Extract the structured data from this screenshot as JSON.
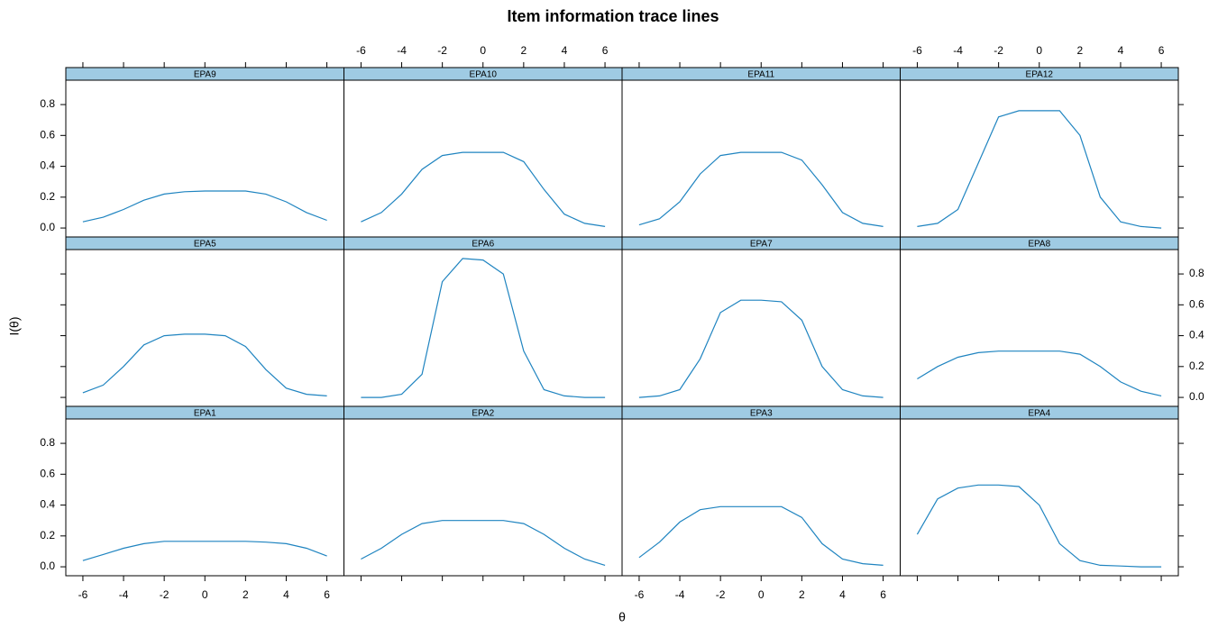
{
  "title": "Item information trace lines",
  "x_label": "θ",
  "y_label": "I(θ)",
  "xlim": [
    -6.84,
    6.84
  ],
  "ylim": [
    -0.058,
    0.958
  ],
  "xticks": [
    -6,
    -4,
    -2,
    0,
    2,
    4,
    6
  ],
  "yticks": [
    {
      "value": 0,
      "label": "0.0"
    },
    {
      "value": 0.2,
      "label": "0.2"
    },
    {
      "value": 0.4,
      "label": "0.4"
    },
    {
      "value": 0.6,
      "label": "0.6"
    },
    {
      "value": 0.8,
      "label": "0.8"
    }
  ],
  "x": [
    -6,
    -5,
    -4,
    -3,
    -2,
    -1,
    0,
    1,
    2,
    3,
    4,
    5,
    6
  ],
  "chart_data": [
    {
      "type": "line",
      "title": "EPA1",
      "color": "#1f84c0",
      "values": [
        0.04,
        0.08,
        0.12,
        0.15,
        0.165,
        0.165,
        0.165,
        0.165,
        0.165,
        0.16,
        0.15,
        0.12,
        0.07
      ]
    },
    {
      "type": "line",
      "title": "EPA2",
      "color": "#1f84c0",
      "values": [
        0.05,
        0.12,
        0.21,
        0.28,
        0.3,
        0.3,
        0.3,
        0.3,
        0.28,
        0.21,
        0.12,
        0.05,
        0.01
      ]
    },
    {
      "type": "line",
      "title": "EPA3",
      "color": "#1f84c0",
      "values": [
        0.06,
        0.16,
        0.29,
        0.37,
        0.39,
        0.39,
        0.39,
        0.39,
        0.32,
        0.15,
        0.05,
        0.02,
        0.01
      ]
    },
    {
      "type": "line",
      "title": "EPA4",
      "color": "#1f84c0",
      "values": [
        0.21,
        0.44,
        0.51,
        0.53,
        0.53,
        0.52,
        0.4,
        0.15,
        0.04,
        0.01,
        0.005,
        0,
        0
      ]
    },
    {
      "type": "line",
      "title": "EPA5",
      "color": "#1f84c0",
      "values": [
        0.03,
        0.08,
        0.2,
        0.34,
        0.4,
        0.41,
        0.41,
        0.4,
        0.33,
        0.18,
        0.06,
        0.02,
        0.01
      ]
    },
    {
      "type": "line",
      "title": "EPA6",
      "color": "#1f84c0",
      "values": [
        0,
        0,
        0.02,
        0.15,
        0.75,
        0.9,
        0.89,
        0.8,
        0.3,
        0.05,
        0.01,
        0,
        0
      ]
    },
    {
      "type": "line",
      "title": "EPA7",
      "color": "#1f84c0",
      "values": [
        0,
        0.01,
        0.05,
        0.25,
        0.55,
        0.63,
        0.63,
        0.62,
        0.5,
        0.2,
        0.05,
        0.01,
        0
      ]
    },
    {
      "type": "line",
      "title": "EPA8",
      "color": "#1f84c0",
      "values": [
        0.12,
        0.2,
        0.26,
        0.29,
        0.3,
        0.3,
        0.3,
        0.3,
        0.28,
        0.2,
        0.1,
        0.04,
        0.01
      ]
    },
    {
      "type": "line",
      "title": "EPA9",
      "color": "#1f84c0",
      "values": [
        0.04,
        0.07,
        0.12,
        0.18,
        0.22,
        0.235,
        0.24,
        0.24,
        0.24,
        0.22,
        0.17,
        0.1,
        0.05
      ]
    },
    {
      "type": "line",
      "title": "EPA10",
      "color": "#1f84c0",
      "values": [
        0.04,
        0.1,
        0.22,
        0.38,
        0.47,
        0.49,
        0.49,
        0.49,
        0.43,
        0.25,
        0.09,
        0.03,
        0.01
      ]
    },
    {
      "type": "line",
      "title": "EPA11",
      "color": "#1f84c0",
      "values": [
        0.02,
        0.06,
        0.17,
        0.35,
        0.47,
        0.49,
        0.49,
        0.49,
        0.44,
        0.28,
        0.1,
        0.03,
        0.01
      ]
    },
    {
      "type": "line",
      "title": "EPA12",
      "color": "#1f84c0",
      "values": [
        0.01,
        0.03,
        0.12,
        0.42,
        0.72,
        0.76,
        0.76,
        0.76,
        0.6,
        0.2,
        0.04,
        0.01,
        0
      ]
    }
  ]
}
